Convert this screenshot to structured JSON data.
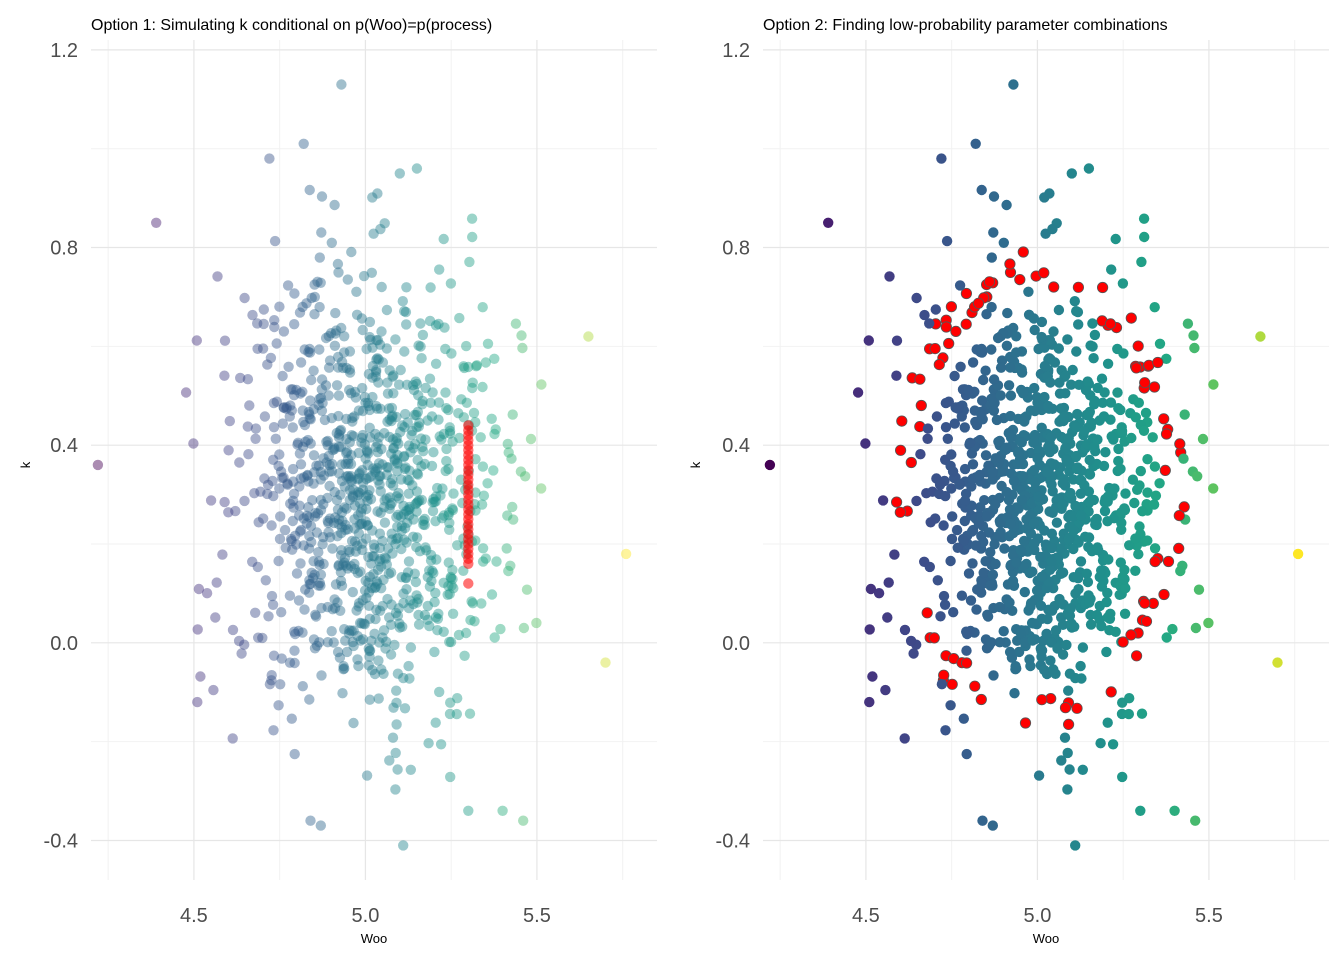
{
  "chart_data": [
    {
      "type": "scatter",
      "title": "Option 1: Simulating k conditional on p(Woo)=p(process)",
      "xlabel": "Woo",
      "ylabel": "k",
      "xlim": [
        4.2,
        5.85
      ],
      "ylim": [
        -0.48,
        1.22
      ],
      "x_ticks": [
        4.5,
        5.0,
        5.5
      ],
      "x_tick_labels": [
        "4.5",
        "5.0",
        "5.5"
      ],
      "y_ticks": [
        -0.4,
        0.0,
        0.4,
        0.8,
        1.2
      ],
      "y_tick_labels": [
        "-0.4",
        "0.0",
        "0.4",
        "0.8",
        "1.2"
      ],
      "grid": true,
      "legend": "none",
      "point_alpha": 0.45,
      "color_map": "viridis (by Woo)",
      "series": [
        {
          "role": "simulated",
          "color": "#ff0000",
          "x_const": 5.3,
          "y": [
            0.44,
            0.43,
            0.42,
            0.41,
            0.4,
            0.39,
            0.38,
            0.37,
            0.36,
            0.35,
            0.34,
            0.33,
            0.32,
            0.31,
            0.3,
            0.29,
            0.28,
            0.27,
            0.26,
            0.25,
            0.24,
            0.23,
            0.22,
            0.21,
            0.2,
            0.19,
            0.18,
            0.17,
            0.16,
            0.12
          ]
        }
      ]
    },
    {
      "type": "scatter",
      "title": "Option 2: Finding low-probability parameter combinations",
      "xlabel": "Woo",
      "ylabel": "k",
      "xlim": [
        4.2,
        5.85
      ],
      "ylim": [
        -0.48,
        1.22
      ],
      "x_ticks": [
        4.5,
        5.0,
        5.5
      ],
      "x_tick_labels": [
        "4.5",
        "5.0",
        "5.5"
      ],
      "y_ticks": [
        -0.4,
        0.0,
        0.4,
        0.8,
        1.2
      ],
      "y_tick_labels": [
        "-0.4",
        "0.0",
        "0.4",
        "0.8",
        "1.2"
      ],
      "grid": true,
      "legend": "none",
      "point_alpha": 1.0,
      "color_map": "viridis (by Woo)",
      "highlight_color": "#ff0000",
      "highlight_rule": "points in a ring of low joint probability"
    }
  ],
  "base_sample": {
    "x_mean": 5.0,
    "x_sd": 0.2,
    "y_mean": 0.3,
    "y_sd": 0.23,
    "n": 1000,
    "notable_points": [
      {
        "x": 4.93,
        "y": 1.13
      },
      {
        "x": 4.82,
        "y": 1.01
      },
      {
        "x": 4.72,
        "y": 0.98
      },
      {
        "x": 5.15,
        "y": 0.96
      },
      {
        "x": 4.39,
        "y": 0.85
      },
      {
        "x": 4.22,
        "y": 0.36
      },
      {
        "x": 4.51,
        "y": -0.12
      },
      {
        "x": 5.65,
        "y": 0.62
      },
      {
        "x": 5.76,
        "y": 0.18
      },
      {
        "x": 5.7,
        "y": -0.04
      },
      {
        "x": 5.11,
        "y": -0.41
      },
      {
        "x": 4.84,
        "y": -0.36
      },
      {
        "x": 4.87,
        "y": -0.37
      },
      {
        "x": 5.46,
        "y": -0.36
      },
      {
        "x": 5.3,
        "y": -0.34
      },
      {
        "x": 5.4,
        "y": -0.34
      }
    ]
  }
}
